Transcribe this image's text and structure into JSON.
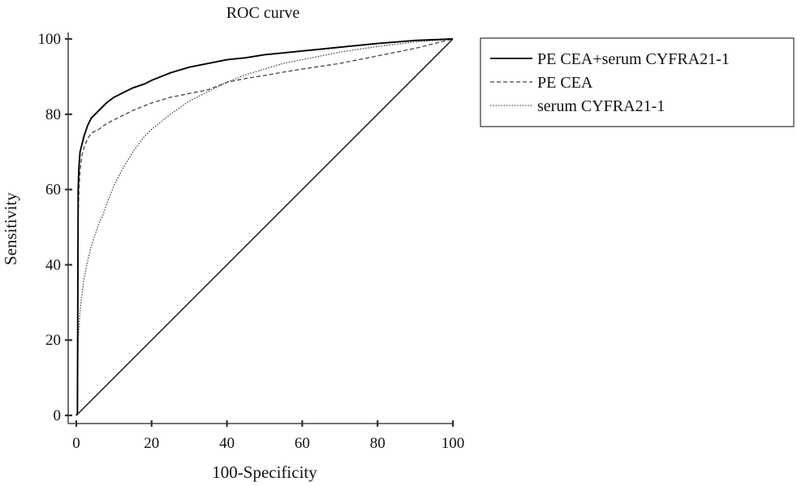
{
  "chart_data": {
    "type": "line",
    "title": "ROC curve",
    "xlabel": "100-Specificity",
    "ylabel": "Sensitivity",
    "xlim": [
      0,
      100
    ],
    "ylim": [
      0,
      100
    ],
    "xticks": [
      "0",
      "20",
      "40",
      "60",
      "80",
      "100"
    ],
    "yticks": [
      "0",
      "20",
      "40",
      "60",
      "80",
      "100"
    ],
    "grid": false,
    "legend_position": "right",
    "series": [
      {
        "name": "PE CEA+serum CYFRA21-1",
        "style": "solid",
        "x": [
          0,
          0.3,
          0.5,
          0.7,
          1,
          1.5,
          2,
          3,
          4,
          5,
          6,
          8,
          10,
          12,
          15,
          18,
          20,
          25,
          30,
          35,
          40,
          45,
          50,
          55,
          60,
          70,
          80,
          90,
          100
        ],
        "y": [
          0,
          0.5,
          60,
          66,
          70,
          72,
          74,
          77,
          79,
          80,
          81,
          83,
          84.5,
          85.5,
          87,
          88,
          89,
          91,
          92.5,
          93.5,
          94.5,
          95,
          95.8,
          96.3,
          96.8,
          97.8,
          98.8,
          99.6,
          100
        ]
      },
      {
        "name": "PE CEA",
        "style": "dashed",
        "x": [
          0,
          0.3,
          0.5,
          0.7,
          1,
          1.5,
          2,
          3,
          4,
          5,
          6,
          8,
          10,
          12,
          15,
          20,
          25,
          30,
          35,
          40,
          45,
          50,
          55,
          60,
          70,
          80,
          90,
          100
        ],
        "y": [
          0,
          0.5,
          53,
          60,
          65,
          69,
          71,
          73.5,
          75,
          75.5,
          76,
          77.5,
          78.5,
          79.5,
          81,
          83,
          84.5,
          85.5,
          86.5,
          88.5,
          89.5,
          90.3,
          91.2,
          92,
          93.5,
          95.5,
          97.5,
          100
        ]
      },
      {
        "name": "serum CYFRA21-1",
        "style": "dotted",
        "x": [
          0,
          0.3,
          0.5,
          1,
          1.5,
          2,
          3,
          4,
          5,
          6,
          7,
          8,
          10,
          12,
          15,
          18,
          20,
          25,
          30,
          35,
          40,
          45,
          50,
          55,
          60,
          70,
          80,
          90,
          100
        ],
        "y": [
          0,
          0.5,
          20,
          28,
          32,
          36,
          41,
          45,
          48,
          51,
          53,
          56,
          61,
          65,
          70,
          74,
          76,
          80,
          83.5,
          86,
          88.5,
          90.5,
          92,
          93.5,
          94.5,
          96.5,
          98,
          99.2,
          100
        ]
      },
      {
        "name": "",
        "style": "reference",
        "x": [
          0,
          100
        ],
        "y": [
          0,
          100
        ]
      }
    ]
  }
}
